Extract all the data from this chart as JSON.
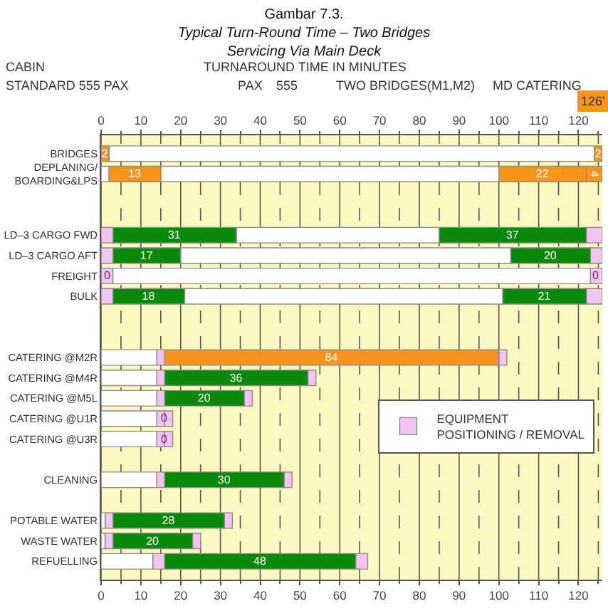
{
  "chart_data": {
    "type": "bar",
    "orientation": "horizontal",
    "title": "Gambar 7.3.",
    "subtitle": "Typical Turn-Round Time – Two Bridges\nServicing Via Main Deck",
    "categories": [
      "BRIDGES",
      "DEPLANING/\nBOARDING&LPS",
      null,
      null,
      "LD–3 CARGO FWD",
      "LD–3 CARGO AFT",
      "FREIGHT",
      "BULK",
      null,
      null,
      "CATERING @M2R",
      "CATERING @M4R",
      "CATERING @M5L",
      "CATERING @U1R",
      "CATERING @U3R",
      null,
      "CLEANING",
      null,
      "POTABLE WATER",
      "WASTE WATER",
      "REFUELLING"
    ],
    "series": [
      {
        "name": "EQUIPMENT\nPOSITIONING / REMOVAL",
        "color": "#f4c4f0",
        "base": [
          null,
          null,
          null,
          null,
          0,
          0,
          0,
          0,
          null,
          null,
          14,
          14,
          14,
          14,
          14,
          null,
          14,
          null,
          1,
          1,
          13
        ],
        "values": [
          null,
          null,
          null,
          null,
          3,
          3,
          3,
          3,
          null,
          null,
          2,
          2,
          2,
          2,
          2,
          null,
          2,
          null,
          2,
          2,
          3
        ]
      },
      {
        "color": "#f4c4f0",
        "base": [
          null,
          null,
          null,
          null,
          122,
          123,
          123,
          122,
          null,
          null,
          100,
          52,
          36,
          16,
          16,
          null,
          46,
          null,
          31,
          23,
          64
        ],
        "values": [
          null,
          null,
          null,
          null,
          4,
          3,
          3,
          4,
          null,
          null,
          2,
          2,
          2,
          2,
          2,
          null,
          2,
          null,
          2,
          2,
          3
        ]
      },
      {
        "color": "#ffffff",
        "base": [
          2,
          0,
          null,
          null,
          34,
          20,
          3,
          21,
          null,
          null,
          0,
          0,
          0,
          0,
          0,
          null,
          0,
          null,
          0,
          0,
          0
        ],
        "values": [
          122,
          2,
          null,
          null,
          51,
          83,
          120,
          80,
          null,
          null,
          14,
          14,
          14,
          14,
          14,
          null,
          14,
          null,
          1,
          1,
          13
        ]
      },
      {
        "color": "#ffffff",
        "base": [
          null,
          15,
          null,
          null,
          null,
          null,
          null,
          null,
          null,
          null,
          null,
          null,
          null,
          null,
          null,
          null,
          null,
          null,
          null,
          null,
          null
        ],
        "values": [
          null,
          85,
          null,
          null,
          null,
          null,
          null,
          null,
          null,
          null,
          null,
          null,
          null,
          null,
          null,
          null,
          null,
          null,
          null,
          null,
          null
        ]
      },
      {
        "color": "#0a8a0a",
        "base": [
          null,
          null,
          null,
          null,
          3,
          3,
          null,
          3,
          null,
          null,
          null,
          16,
          16,
          null,
          null,
          null,
          16,
          null,
          3,
          3,
          16
        ],
        "values": [
          null,
          null,
          null,
          null,
          31,
          17,
          null,
          18,
          null,
          null,
          null,
          36,
          20,
          null,
          null,
          null,
          30,
          null,
          28,
          20,
          48
        ],
        "value_labels": [
          null,
          null,
          null,
          null,
          "31",
          "17",
          null,
          "18",
          null,
          null,
          null,
          "36",
          "20",
          null,
          null,
          null,
          "30",
          null,
          "28",
          "20",
          "48"
        ]
      },
      {
        "color": "#0a8a0a",
        "base": [
          null,
          null,
          null,
          null,
          85,
          103,
          null,
          101,
          null,
          null,
          null,
          null,
          null,
          null,
          null,
          null,
          null,
          null,
          null,
          null,
          null
        ],
        "values": [
          null,
          null,
          null,
          null,
          37,
          20,
          null,
          21,
          null,
          null,
          null,
          null,
          null,
          null,
          null,
          null,
          null,
          null,
          null,
          null,
          null
        ],
        "value_labels": [
          null,
          null,
          null,
          null,
          "37",
          "20",
          null,
          "21",
          null,
          null,
          null,
          null,
          null,
          null,
          null,
          null,
          null,
          null,
          null,
          null,
          null
        ]
      },
      {
        "color": "#f7941d",
        "base": [
          0,
          2,
          null,
          null,
          null,
          null,
          null,
          null,
          null,
          null,
          16,
          null,
          null,
          null,
          null,
          null,
          null,
          null,
          null,
          null,
          null
        ],
        "values": [
          2,
          13,
          null,
          null,
          null,
          null,
          null,
          null,
          null,
          null,
          84,
          null,
          null,
          null,
          null,
          null,
          null,
          null,
          null,
          null,
          null
        ],
        "value_labels": [
          "2",
          "13",
          null,
          null,
          null,
          null,
          null,
          null,
          null,
          null,
          "84",
          null,
          null,
          null,
          null,
          null,
          null,
          null,
          null,
          null,
          null
        ]
      },
      {
        "color": "#f7941d",
        "base": [
          124,
          100,
          null,
          null,
          null,
          null,
          null,
          null,
          null,
          null,
          null,
          null,
          null,
          null,
          null,
          null,
          null,
          null,
          null,
          null,
          null
        ],
        "values": [
          2,
          22,
          null,
          null,
          null,
          null,
          null,
          null,
          null,
          null,
          null,
          null,
          null,
          null,
          null,
          null,
          null,
          null,
          null,
          null,
          null
        ],
        "value_labels": [
          "2",
          "22",
          null,
          null,
          null,
          null,
          null,
          null,
          null,
          null,
          null,
          null,
          null,
          null,
          null,
          null,
          null,
          null,
          null,
          null,
          null
        ]
      },
      {
        "color": "#f7941d",
        "base": [
          null,
          122,
          null,
          null,
          null,
          null,
          null,
          null,
          null,
          null,
          null,
          null,
          null,
          null,
          null,
          null,
          null,
          null,
          null,
          null,
          null
        ],
        "values": [
          null,
          4,
          null,
          null,
          null,
          null,
          null,
          null,
          null,
          null,
          null,
          null,
          null,
          null,
          null,
          null,
          null,
          null,
          null,
          null,
          null
        ],
        "value_labels": [
          null,
          "4",
          null,
          null,
          null,
          null,
          null,
          null,
          null,
          null,
          null,
          null,
          null,
          null,
          null,
          null,
          null,
          null,
          null,
          null,
          null
        ]
      }
    ],
    "annotations": [
      "CABIN",
      "STANDARD 555 PAX",
      "TURNAROUND TIME IN MINUTES",
      "PAX",
      "555",
      "TWO BRIDGES(M1,M2)",
      "MD CATERING",
      "126'",
      {
        "text": "0",
        "x": 1.5,
        "y": "FREIGHT"
      },
      {
        "text": "0",
        "x": 124.5,
        "y": "FREIGHT"
      },
      {
        "text": "0",
        "x": 16,
        "y": "CATERING @U1R"
      },
      {
        "text": "0",
        "x": 16,
        "y": "CATERING @U3R"
      }
    ],
    "xlim": [
      0,
      126
    ],
    "xticks": [
      0,
      {
        "value": 5,
        "label": null
      },
      10,
      {
        "value": 15,
        "label": null
      },
      20,
      {
        "value": 25,
        "label": null
      },
      30,
      {
        "value": 35,
        "label": null
      },
      40,
      {
        "value": 45,
        "label": null
      },
      50,
      {
        "value": 55,
        "label": null
      },
      60,
      {
        "value": 65,
        "label": null
      },
      70,
      {
        "value": 75,
        "label": null
      },
      80,
      {
        "value": 85,
        "label": null
      },
      90,
      {
        "value": 95,
        "label": null
      },
      100,
      {
        "value": 105,
        "label": null
      },
      110,
      {
        "value": 115,
        "label": null
      },
      120,
      {
        "value": 125,
        "label": null
      }
    ],
    "x2lim": [
      0,
      126
    ],
    "x2ticks": [
      0,
      {
        "value": 5,
        "label": null
      },
      10,
      {
        "value": 15,
        "label": null
      },
      20,
      {
        "value": 25,
        "label": null
      },
      30,
      {
        "value": 35,
        "label": null
      },
      40,
      {
        "value": 45,
        "label": null
      },
      50,
      {
        "value": 55,
        "label": null
      },
      60,
      {
        "value": 65,
        "label": null
      },
      70,
      {
        "value": 75,
        "label": null
      },
      80,
      {
        "value": 85,
        "label": null
      },
      90,
      {
        "value": 95,
        "label": null
      },
      100,
      {
        "value": 105,
        "label": null
      },
      110,
      {
        "value": 115,
        "label": null
      },
      120,
      {
        "value": 125,
        "label": null
      }
    ],
    "grid": "x",
    "legend": "right"
  }
}
